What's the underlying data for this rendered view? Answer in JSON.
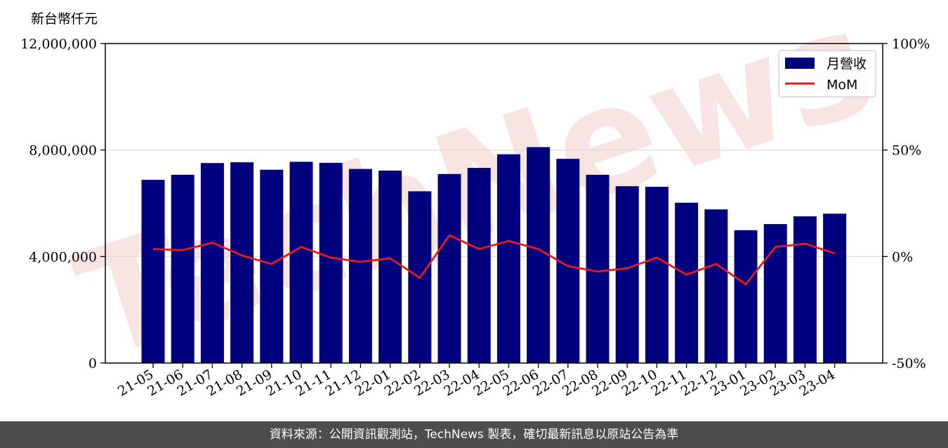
{
  "chart_data": {
    "type": "bar",
    "y_unit_label": "新台幣仟元",
    "categories": [
      "21-05",
      "21-06",
      "21-07",
      "21-08",
      "21-09",
      "21-10",
      "21-11",
      "21-12",
      "22-01",
      "22-02",
      "22-03",
      "22-04",
      "22-05",
      "22-06",
      "22-07",
      "22-08",
      "22-09",
      "22-10",
      "22-11",
      "22-12",
      "23-01",
      "23-02",
      "23-03",
      "23-04"
    ],
    "series": [
      {
        "name": "月營收",
        "type": "bar",
        "axis": "left",
        "color": "#00007f",
        "values": [
          6880000,
          7070000,
          7510000,
          7540000,
          7260000,
          7560000,
          7520000,
          7290000,
          7230000,
          6450000,
          7100000,
          7330000,
          7840000,
          8110000,
          7670000,
          7070000,
          6640000,
          6620000,
          6020000,
          5770000,
          4990000,
          5220000,
          5510000,
          5610000
        ]
      },
      {
        "name": "MoM",
        "type": "line",
        "axis": "right",
        "color": "#e41a1c",
        "values": [
          3.5,
          3.0,
          6.5,
          0.5,
          -3.5,
          4.5,
          -0.5,
          -2.5,
          -0.8,
          -10.0,
          10.0,
          3.5,
          7.3,
          3.5,
          -4.5,
          -7.0,
          -5.5,
          -0.5,
          -8.5,
          -3.5,
          -13.0,
          4.5,
          6.0,
          1.5
        ]
      }
    ],
    "y_left": {
      "ylim": [
        0,
        12000000
      ],
      "ticks": [
        0,
        4000000,
        8000000,
        12000000
      ],
      "tick_labels": [
        "0",
        "4,000,000",
        "8,000,000",
        "12,000,000"
      ]
    },
    "y_right": {
      "ylim": [
        -50,
        100
      ],
      "ticks": [
        -50,
        0,
        50,
        100
      ],
      "tick_labels": [
        "-50%",
        "0%",
        "50%",
        "100%"
      ]
    },
    "grid": "horizontal",
    "legend_placement": "top-right"
  },
  "watermark": "TechNews",
  "footer": {
    "text": "資料來源：公開資訊觀測站，TechNews 製表，確切最新訊息以原站公告為準"
  }
}
